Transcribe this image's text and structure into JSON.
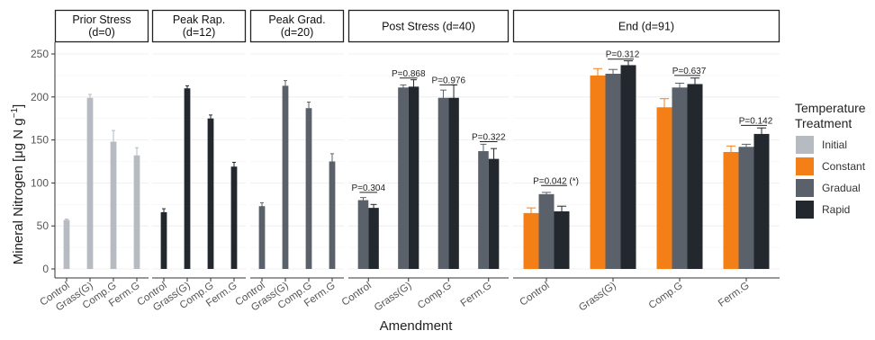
{
  "chart_data": {
    "type": "bar",
    "ylabel": "Mineral Nitrogen [μg N g⁻¹]",
    "ylabel_parts": [
      "Mineral Nitrogen [μg N g",
      "−1",
      "]"
    ],
    "xlabel": "Amendment",
    "ylim": [
      0,
      250
    ],
    "yticks": [
      0,
      50,
      100,
      150,
      200,
      250
    ],
    "legend": {
      "title": [
        "Temperature",
        "Treatment"
      ],
      "placement": "right",
      "items": [
        {
          "name": "Initial",
          "color": "#b6bbc1"
        },
        {
          "name": "Constant",
          "color": "#f57f17"
        },
        {
          "name": "Gradual",
          "color": "#5a616a"
        },
        {
          "name": "Rapid",
          "color": "#23272e"
        }
      ]
    },
    "panels": [
      {
        "title": [
          "Prior Stress",
          "(d=0)"
        ],
        "categories": [
          "Control",
          "Grass(G)",
          "Comp.G",
          "Ferm.G"
        ],
        "tick_style": "angled",
        "groups": [
          {
            "category": "Control",
            "bars": [
              {
                "series": "Initial",
                "value": 57,
                "err": 1
              }
            ]
          },
          {
            "category": "Grass(G)",
            "bars": [
              {
                "series": "Initial",
                "value": 199,
                "err": 4
              }
            ]
          },
          {
            "category": "Comp.G",
            "bars": [
              {
                "series": "Initial",
                "value": 148,
                "err": 13
              }
            ]
          },
          {
            "category": "Ferm.G",
            "bars": [
              {
                "series": "Initial",
                "value": 132,
                "err": 9
              }
            ]
          }
        ],
        "annotations": []
      },
      {
        "title": [
          "Peak Rap.",
          "(d=12)"
        ],
        "categories": [
          "Control",
          "Grass(G)",
          "Comp.G",
          "Ferm.G"
        ],
        "tick_style": "angled",
        "groups": [
          {
            "category": "Control",
            "bars": [
              {
                "series": "Rapid",
                "value": 66,
                "err": 4
              }
            ]
          },
          {
            "category": "Grass(G)",
            "bars": [
              {
                "series": "Rapid",
                "value": 210,
                "err": 3
              }
            ]
          },
          {
            "category": "Comp.G",
            "bars": [
              {
                "series": "Rapid",
                "value": 175,
                "err": 4
              }
            ]
          },
          {
            "category": "Ferm.G",
            "bars": [
              {
                "series": "Rapid",
                "value": 119,
                "err": 5
              }
            ]
          }
        ],
        "annotations": []
      },
      {
        "title": [
          "Peak Grad.",
          "(d=20)"
        ],
        "categories": [
          "Control",
          "Grass(G)",
          "Comp.G",
          "Ferm.G"
        ],
        "tick_style": "angled",
        "groups": [
          {
            "category": "Control",
            "bars": [
              {
                "series": "Gradual",
                "value": 73,
                "err": 4
              }
            ]
          },
          {
            "category": "Grass(G)",
            "bars": [
              {
                "series": "Gradual",
                "value": 213,
                "err": 6
              }
            ]
          },
          {
            "category": "Comp.G",
            "bars": [
              {
                "series": "Gradual",
                "value": 187,
                "err": 7
              }
            ]
          },
          {
            "category": "Ferm.G",
            "bars": [
              {
                "series": "Gradual",
                "value": 125,
                "err": 9
              }
            ]
          }
        ],
        "annotations": []
      },
      {
        "title": [
          "Post Stress (d=40)"
        ],
        "categories": [
          "Control",
          "Grass(G)",
          "Comp.G",
          "Ferm.G"
        ],
        "tick_style": "angled",
        "groups": [
          {
            "category": "Control",
            "bars": [
              {
                "series": "Gradual",
                "value": 80,
                "err": 3
              },
              {
                "series": "Rapid",
                "value": 71,
                "err": 4
              }
            ]
          },
          {
            "category": "Grass(G)",
            "bars": [
              {
                "series": "Gradual",
                "value": 211,
                "err": 3
              },
              {
                "series": "Rapid",
                "value": 212,
                "err": 8
              }
            ]
          },
          {
            "category": "Comp.G",
            "bars": [
              {
                "series": "Gradual",
                "value": 199,
                "err": 9
              },
              {
                "series": "Rapid",
                "value": 199,
                "err": 15
              }
            ]
          },
          {
            "category": "Ferm.G",
            "bars": [
              {
                "series": "Gradual",
                "value": 137,
                "err": 8
              },
              {
                "series": "Rapid",
                "value": 128,
                "err": 12
              }
            ]
          }
        ],
        "annotations": [
          {
            "category": "Control",
            "text": "P=0.304",
            "y": 89
          },
          {
            "category": "Grass(G)",
            "text": "P=0.868",
            "y": 222
          },
          {
            "category": "Comp.G",
            "text": "P=0.976",
            "y": 214
          },
          {
            "category": "Ferm.G",
            "text": "P=0.322",
            "y": 148
          }
        ]
      },
      {
        "title": [
          "End (d=91)"
        ],
        "categories": [
          "Control",
          "Grass(G)",
          "Comp.G",
          "Ferm.G"
        ],
        "tick_style": "angled",
        "groups": [
          {
            "category": "Control",
            "bars": [
              {
                "series": "Constant",
                "value": 65,
                "err": 6
              },
              {
                "series": "Gradual",
                "value": 87,
                "err": 2
              },
              {
                "series": "Rapid",
                "value": 67,
                "err": 6
              }
            ]
          },
          {
            "category": "Grass(G)",
            "bars": [
              {
                "series": "Constant",
                "value": 225,
                "err": 8
              },
              {
                "series": "Gradual",
                "value": 227,
                "err": 5
              },
              {
                "series": "Rapid",
                "value": 237,
                "err": 5
              }
            ]
          },
          {
            "category": "Comp.G",
            "bars": [
              {
                "series": "Constant",
                "value": 188,
                "err": 10
              },
              {
                "series": "Gradual",
                "value": 211,
                "err": 5
              },
              {
                "series": "Rapid",
                "value": 215,
                "err": 7
              }
            ]
          },
          {
            "category": "Ferm.G",
            "bars": [
              {
                "series": "Constant",
                "value": 136,
                "err": 7
              },
              {
                "series": "Gradual",
                "value": 142,
                "err": 3
              },
              {
                "series": "Rapid",
                "value": 157,
                "err": 7
              }
            ]
          }
        ],
        "annotations": [
          {
            "category": "Control",
            "text": "P=0.042 (*)",
            "y": 97
          },
          {
            "category": "Grass(G)",
            "text": "P=0.312",
            "y": 244
          },
          {
            "category": "Comp.G",
            "text": "P=0.637",
            "y": 225
          },
          {
            "category": "Ferm.G",
            "text": "P=0.142",
            "y": 167
          }
        ]
      }
    ]
  }
}
